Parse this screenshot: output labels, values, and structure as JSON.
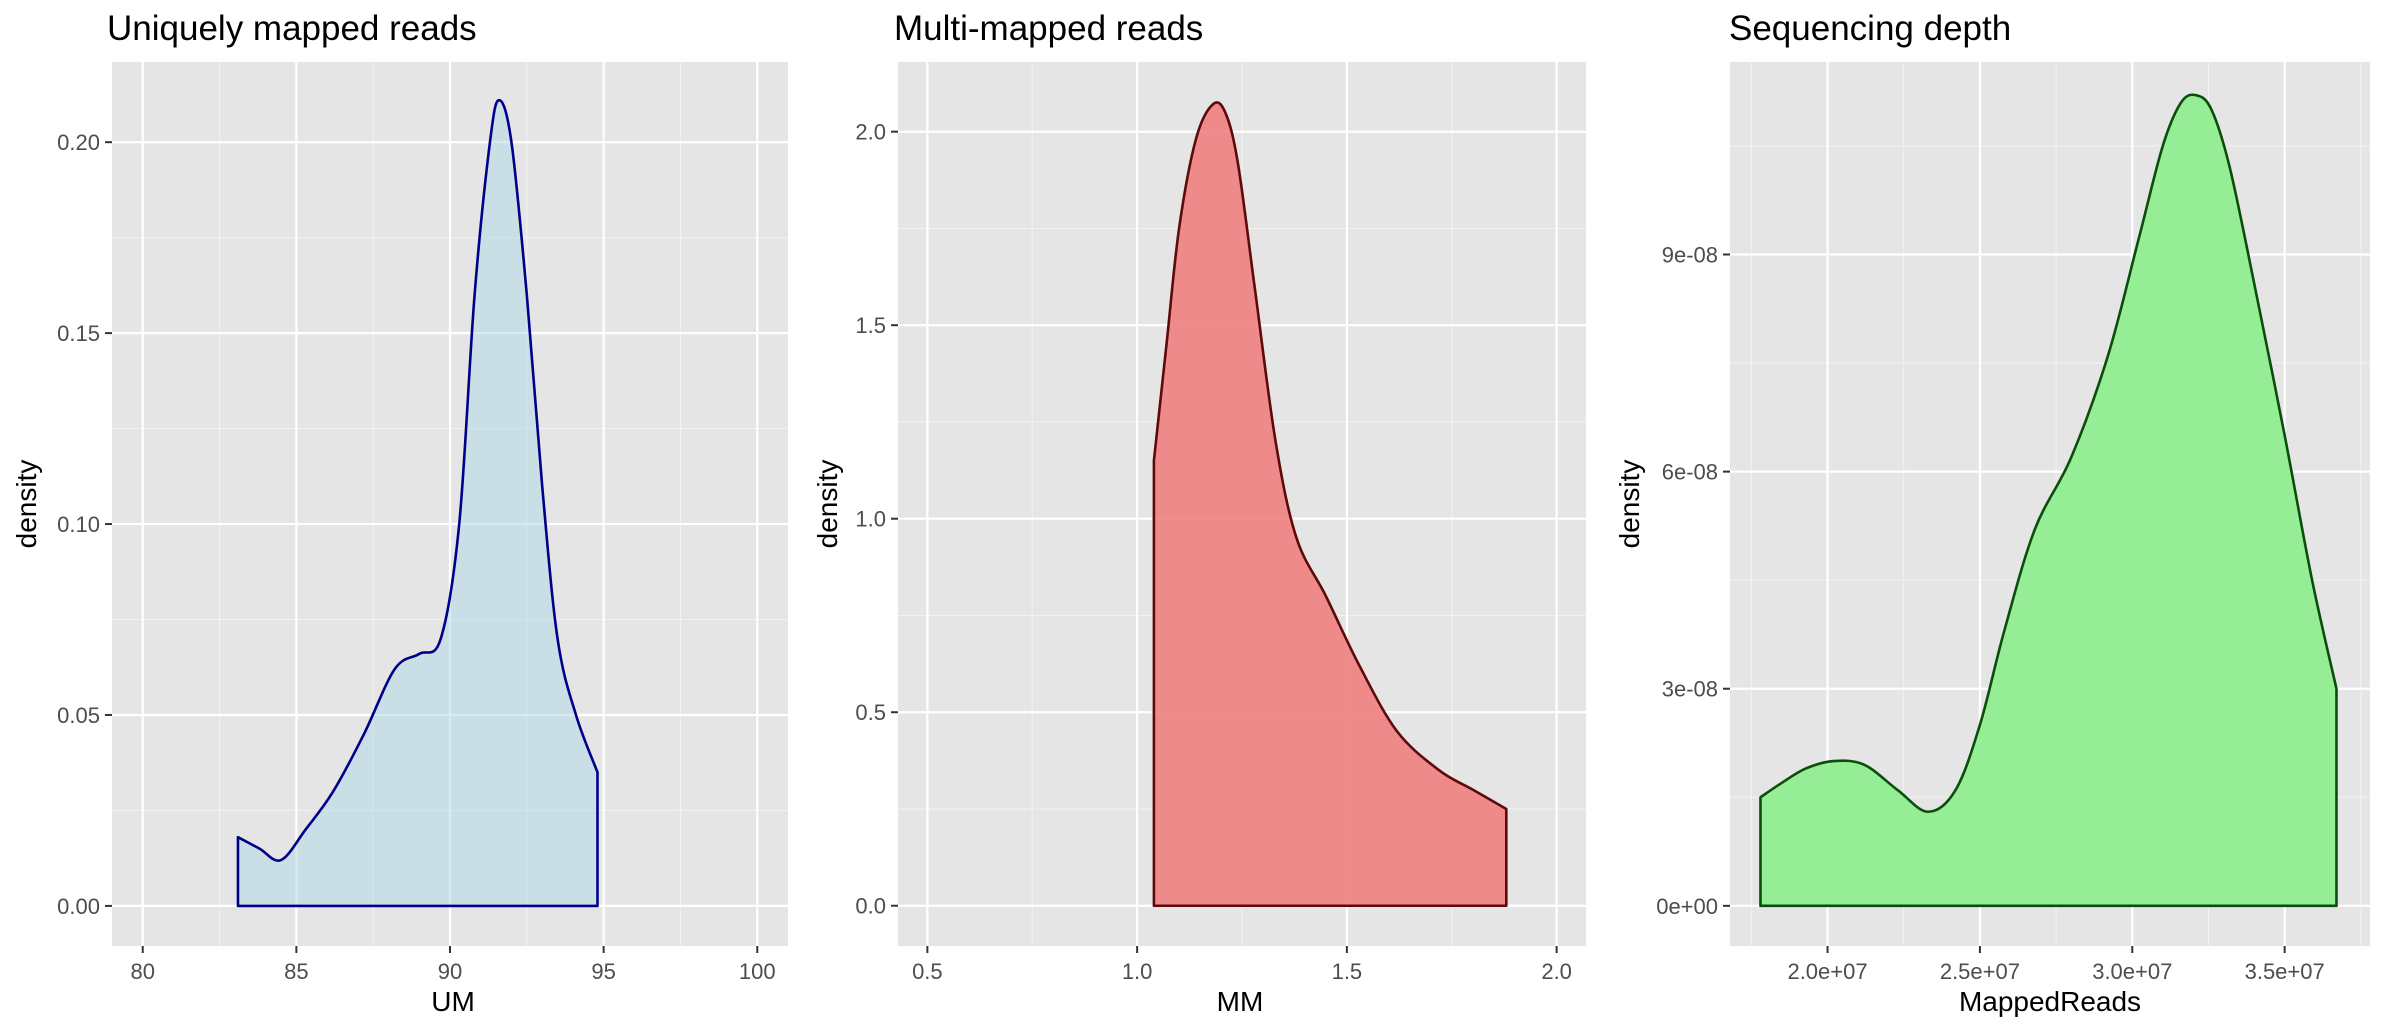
{
  "chart_data": [
    {
      "type": "area",
      "title": "Uniquely mapped reads",
      "xlabel": "UM",
      "ylabel": "density",
      "xlim": [
        79,
        101
      ],
      "ylim": [
        -0.0105,
        0.221
      ],
      "x_ticks": [
        80,
        85,
        90,
        95,
        100
      ],
      "x_tick_labels": [
        "80",
        "85",
        "90",
        "95",
        "100"
      ],
      "y_ticks": [
        0,
        0.05,
        0.1,
        0.15,
        0.2
      ],
      "y_tick_labels": [
        "0.00",
        "0.05",
        "0.10",
        "0.15",
        "0.20"
      ],
      "grid": true,
      "fill": "#add8e6",
      "fill_opacity": 0.5,
      "stroke": "#00008b",
      "x": [
        83.1,
        83.8,
        84.5,
        85.3,
        86.2,
        87.2,
        88.2,
        89.0,
        89.7,
        90.3,
        90.8,
        91.3,
        91.6,
        92.0,
        92.5,
        93.0,
        93.5,
        94.1,
        94.8
      ],
      "y": [
        0.018,
        0.015,
        0.012,
        0.02,
        0.03,
        0.045,
        0.062,
        0.066,
        0.07,
        0.1,
        0.16,
        0.2,
        0.211,
        0.2,
        0.16,
        0.11,
        0.07,
        0.05,
        0.035
      ]
    },
    {
      "type": "area",
      "title": "Multi-mapped reads",
      "xlabel": "MM",
      "ylabel": "density",
      "xlim": [
        0.43,
        2.07
      ],
      "ylim": [
        -0.104,
        2.18
      ],
      "x_ticks": [
        0.5,
        1.0,
        1.5,
        2.0
      ],
      "x_tick_labels": [
        "0.5",
        "1.0",
        "1.5",
        "2.0"
      ],
      "y_ticks": [
        0,
        0.5,
        1.0,
        1.5,
        2.0
      ],
      "y_tick_labels": [
        "0.0",
        "0.5",
        "1.0",
        "1.5",
        "2.0"
      ],
      "grid": true,
      "fill": "#f08080",
      "fill_opacity": 0.9,
      "stroke": "#5c0a0a",
      "x": [
        1.04,
        1.07,
        1.1,
        1.14,
        1.18,
        1.21,
        1.24,
        1.28,
        1.33,
        1.38,
        1.45,
        1.53,
        1.62,
        1.72,
        1.8,
        1.88
      ],
      "y": [
        1.15,
        1.45,
        1.75,
        1.98,
        2.07,
        2.05,
        1.92,
        1.6,
        1.2,
        0.95,
        0.8,
        0.62,
        0.45,
        0.35,
        0.3,
        0.25
      ]
    },
    {
      "type": "area",
      "title": "Sequencing depth",
      "xlabel": "MappedReads",
      "ylabel": "density",
      "xlim": [
        16800000,
        37800000
      ],
      "ylim": [
        -5.55e-09,
        1.166e-07
      ],
      "x_ticks": [
        20000000,
        25000000,
        30000000,
        35000000
      ],
      "x_tick_labels": [
        "2.0e+07",
        "2.5e+07",
        "3.0e+07",
        "3.5e+07"
      ],
      "y_ticks": [
        0,
        3e-08,
        6e-08,
        9e-08
      ],
      "y_tick_labels": [
        "0e+00",
        "3e-08",
        "6e-08",
        "9e-08"
      ],
      "grid": true,
      "fill": "#90ee90",
      "fill_opacity": 0.95,
      "stroke": "#0b4d0b",
      "x": [
        17800000,
        18500000,
        19300000,
        20200000,
        21200000,
        22300000,
        23300000,
        24200000,
        25000000,
        25800000,
        26800000,
        28000000,
        29200000,
        30200000,
        31000000,
        31600000,
        32100000,
        32600000,
        33200000,
        34000000,
        35000000,
        35900000,
        36700000
      ],
      "y": [
        1.5e-08,
        1.7e-08,
        1.9e-08,
        2e-08,
        1.95e-08,
        1.6e-08,
        1.3e-08,
        1.6e-08,
        2.5e-08,
        3.8e-08,
        5.2e-08,
        6.2e-08,
        7.6e-08,
        9.2e-08,
        1.05e-07,
        1.11e-07,
        1.12e-07,
        1.1e-07,
        1.02e-07,
        8.6e-08,
        6.5e-08,
        4.5e-08,
        3e-08
      ]
    }
  ]
}
